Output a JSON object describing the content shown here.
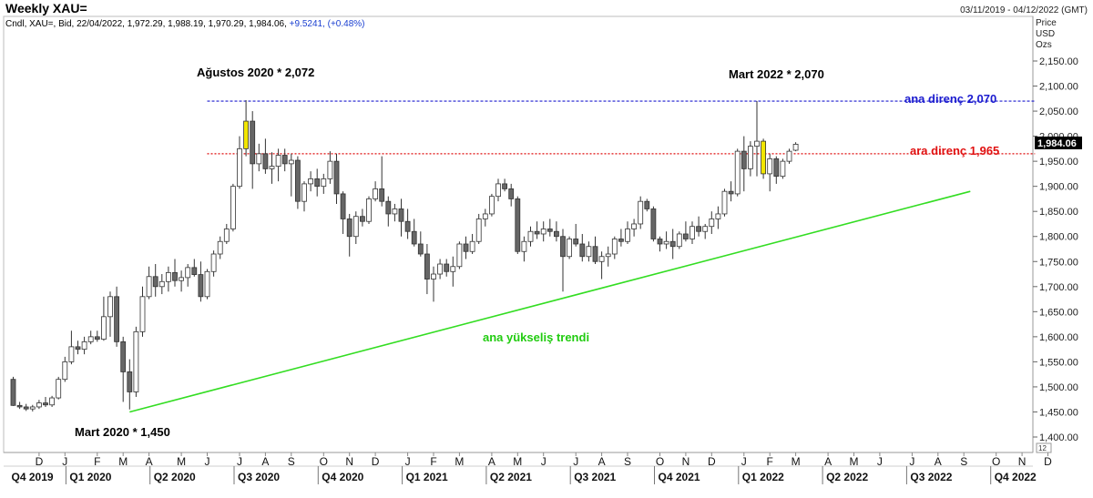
{
  "header": {
    "title": "Weekly XAU=",
    "date_range": "03/11/2019 - 04/12/2022 (GMT)",
    "info_line": "Cndl, XAU=, Bid, 22/04/2022, 1,972.29, 1,988.19, 1,970.29, 1,984.06,",
    "change": "+9.5241, (+0.48%)"
  },
  "axis_meta": {
    "price": "Price",
    "currency": "USD",
    "unit": "Ozs",
    "corner_value": "12"
  },
  "colors": {
    "bull": "#ffffff",
    "bear": "#666666",
    "highlight": "#f2e600",
    "trend": "#33dd22",
    "main_resistance": "#1c1ccf",
    "mid_resistance": "#e01010",
    "price_box": "#000000"
  },
  "chart_data": {
    "type": "candlestick",
    "title": "Weekly XAU=",
    "y_axis": {
      "min": 1400,
      "max": 2150,
      "ticks": [
        "1,400.00",
        "1,450.00",
        "1,500.00",
        "1,550.00",
        "1,600.00",
        "1,650.00",
        "1,700.00",
        "1,750.00",
        "1,800.00",
        "1,850.00",
        "1,900.00",
        "1,950.00",
        "2,000.00",
        "2,050.00",
        "2,100.00",
        "2,150.00"
      ]
    },
    "last_price_label": "1,984.06",
    "last_price": 1984.06,
    "month_labels": [
      {
        "label": "D",
        "week": 4
      },
      {
        "label": "J",
        "week": 8
      },
      {
        "label": "F",
        "week": 13
      },
      {
        "label": "M",
        "week": 17
      },
      {
        "label": "A",
        "week": 21
      },
      {
        "label": "M",
        "week": 26
      },
      {
        "label": "J",
        "week": 30
      },
      {
        "label": "J",
        "week": 35
      },
      {
        "label": "A",
        "week": 39
      },
      {
        "label": "S",
        "week": 43
      },
      {
        "label": "O",
        "week": 48
      },
      {
        "label": "N",
        "week": 52
      },
      {
        "label": "D",
        "week": 56
      },
      {
        "label": "J",
        "week": 61
      },
      {
        "label": "F",
        "week": 65
      },
      {
        "label": "M",
        "week": 69
      },
      {
        "label": "A",
        "week": 74
      },
      {
        "label": "M",
        "week": 78
      },
      {
        "label": "J",
        "week": 82
      },
      {
        "label": "J",
        "week": 87
      },
      {
        "label": "A",
        "week": 91
      },
      {
        "label": "S",
        "week": 95
      },
      {
        "label": "O",
        "week": 100
      },
      {
        "label": "N",
        "week": 104
      },
      {
        "label": "D",
        "week": 108
      },
      {
        "label": "J",
        "week": 113
      },
      {
        "label": "F",
        "week": 117
      },
      {
        "label": "M",
        "week": 121
      },
      {
        "label": "A",
        "week": 126
      },
      {
        "label": "M",
        "week": 130
      },
      {
        "label": "J",
        "week": 134
      },
      {
        "label": "J",
        "week": 139
      },
      {
        "label": "A",
        "week": 143
      },
      {
        "label": "S",
        "week": 147
      },
      {
        "label": "O",
        "week": 152
      },
      {
        "label": "N",
        "week": 156
      },
      {
        "label": "D",
        "week": 160
      }
    ],
    "quarter_labels": [
      {
        "label": "Q4 2019",
        "week": 0
      },
      {
        "label": "Q1 2020",
        "week": 9
      },
      {
        "label": "Q2 2020",
        "week": 22
      },
      {
        "label": "Q3 2020",
        "week": 35
      },
      {
        "label": "Q4 2020",
        "week": 48
      },
      {
        "label": "Q1 2021",
        "week": 61
      },
      {
        "label": "Q2 2021",
        "week": 74
      },
      {
        "label": "Q3 2021",
        "week": 87
      },
      {
        "label": "Q4 2021",
        "week": 100
      },
      {
        "label": "Q1 2022",
        "week": 113
      },
      {
        "label": "Q2 2022",
        "week": 126
      },
      {
        "label": "Q3 2022",
        "week": 139
      },
      {
        "label": "Q4 2022",
        "week": 152
      }
    ],
    "candles": [
      [
        1515,
        1520,
        1462,
        1463
      ],
      [
        1463,
        1470,
        1456,
        1460
      ],
      [
        1460,
        1466,
        1452,
        1456
      ],
      [
        1456,
        1464,
        1451,
        1460
      ],
      [
        1460,
        1474,
        1456,
        1468
      ],
      [
        1468,
        1480,
        1460,
        1464
      ],
      [
        1464,
        1482,
        1460,
        1478
      ],
      [
        1478,
        1520,
        1475,
        1515
      ],
      [
        1515,
        1560,
        1510,
        1550
      ],
      [
        1550,
        1612,
        1545,
        1580
      ],
      [
        1580,
        1592,
        1565,
        1575
      ],
      [
        1575,
        1600,
        1565,
        1590
      ],
      [
        1590,
        1612,
        1585,
        1600
      ],
      [
        1600,
        1612,
        1590,
        1595
      ],
      [
        1595,
        1680,
        1592,
        1640
      ],
      [
        1640,
        1690,
        1600,
        1680
      ],
      [
        1680,
        1700,
        1580,
        1590
      ],
      [
        1590,
        1600,
        1470,
        1530
      ],
      [
        1530,
        1555,
        1455,
        1490
      ],
      [
        1490,
        1620,
        1480,
        1610
      ],
      [
        1610,
        1700,
        1600,
        1680
      ],
      [
        1680,
        1740,
        1675,
        1720
      ],
      [
        1720,
        1745,
        1680,
        1700
      ],
      [
        1700,
        1725,
        1685,
        1710
      ],
      [
        1710,
        1740,
        1690,
        1728
      ],
      [
        1728,
        1755,
        1700,
        1712
      ],
      [
        1712,
        1732,
        1690,
        1718
      ],
      [
        1718,
        1745,
        1700,
        1738
      ],
      [
        1738,
        1755,
        1720,
        1724
      ],
      [
        1724,
        1750,
        1670,
        1680
      ],
      [
        1680,
        1735,
        1675,
        1730
      ],
      [
        1730,
        1772,
        1720,
        1765
      ],
      [
        1765,
        1800,
        1755,
        1790
      ],
      [
        1790,
        1825,
        1785,
        1815
      ],
      [
        1815,
        1905,
        1810,
        1900
      ],
      [
        1900,
        2000,
        1895,
        1975
      ],
      [
        1975,
        2072,
        1960,
        2030
      ],
      [
        2030,
        2050,
        1895,
        1945
      ],
      [
        1945,
        1985,
        1930,
        1965
      ],
      [
        1965,
        1995,
        1925,
        1935
      ],
      [
        1935,
        1968,
        1905,
        1940
      ],
      [
        1940,
        1975,
        1910,
        1962
      ],
      [
        1962,
        1975,
        1930,
        1945
      ],
      [
        1945,
        1965,
        1880,
        1952
      ],
      [
        1952,
        1960,
        1855,
        1870
      ],
      [
        1870,
        1910,
        1850,
        1905
      ],
      [
        1905,
        1930,
        1890,
        1915
      ],
      [
        1915,
        1935,
        1880,
        1900
      ],
      [
        1900,
        1925,
        1885,
        1915
      ],
      [
        1915,
        1970,
        1905,
        1950
      ],
      [
        1950,
        1965,
        1865,
        1885
      ],
      [
        1885,
        1890,
        1805,
        1835
      ],
      [
        1835,
        1845,
        1760,
        1800
      ],
      [
        1800,
        1850,
        1785,
        1840
      ],
      [
        1840,
        1855,
        1820,
        1830
      ],
      [
        1830,
        1880,
        1825,
        1875
      ],
      [
        1875,
        1910,
        1870,
        1895
      ],
      [
        1895,
        1960,
        1860,
        1870
      ],
      [
        1870,
        1880,
        1820,
        1845
      ],
      [
        1845,
        1865,
        1830,
        1855
      ],
      [
        1855,
        1875,
        1800,
        1830
      ],
      [
        1830,
        1855,
        1795,
        1810
      ],
      [
        1810,
        1835,
        1780,
        1785
      ],
      [
        1785,
        1810,
        1760,
        1765
      ],
      [
        1765,
        1785,
        1685,
        1715
      ],
      [
        1715,
        1740,
        1670,
        1725
      ],
      [
        1725,
        1755,
        1715,
        1745
      ],
      [
        1745,
        1755,
        1720,
        1730
      ],
      [
        1730,
        1760,
        1700,
        1740
      ],
      [
        1740,
        1790,
        1735,
        1785
      ],
      [
        1785,
        1800,
        1755,
        1770
      ],
      [
        1770,
        1805,
        1765,
        1790
      ],
      [
        1790,
        1845,
        1785,
        1835
      ],
      [
        1835,
        1855,
        1820,
        1845
      ],
      [
        1845,
        1885,
        1840,
        1880
      ],
      [
        1880,
        1915,
        1870,
        1905
      ],
      [
        1905,
        1915,
        1890,
        1895
      ],
      [
        1895,
        1905,
        1860,
        1875
      ],
      [
        1875,
        1880,
        1765,
        1770
      ],
      [
        1770,
        1800,
        1750,
        1790
      ],
      [
        1790,
        1820,
        1780,
        1810
      ],
      [
        1810,
        1830,
        1795,
        1805
      ],
      [
        1805,
        1830,
        1790,
        1815
      ],
      [
        1815,
        1835,
        1800,
        1810
      ],
      [
        1810,
        1830,
        1790,
        1800
      ],
      [
        1800,
        1815,
        1690,
        1760
      ],
      [
        1760,
        1800,
        1755,
        1795
      ],
      [
        1795,
        1825,
        1780,
        1785
      ],
      [
        1785,
        1805,
        1750,
        1760
      ],
      [
        1760,
        1790,
        1750,
        1780
      ],
      [
        1780,
        1800,
        1745,
        1750
      ],
      [
        1750,
        1770,
        1715,
        1760
      ],
      [
        1760,
        1780,
        1740,
        1765
      ],
      [
        1765,
        1800,
        1755,
        1795
      ],
      [
        1795,
        1815,
        1780,
        1790
      ],
      [
        1790,
        1830,
        1785,
        1815
      ],
      [
        1815,
        1835,
        1800,
        1825
      ],
      [
        1825,
        1880,
        1815,
        1870
      ],
      [
        1870,
        1875,
        1850,
        1855
      ],
      [
        1855,
        1860,
        1790,
        1795
      ],
      [
        1795,
        1800,
        1770,
        1785
      ],
      [
        1785,
        1810,
        1775,
        1790
      ],
      [
        1790,
        1815,
        1755,
        1780
      ],
      [
        1780,
        1810,
        1775,
        1805
      ],
      [
        1805,
        1830,
        1790,
        1795
      ],
      [
        1795,
        1830,
        1785,
        1820
      ],
      [
        1820,
        1840,
        1800,
        1810
      ],
      [
        1810,
        1825,
        1795,
        1820
      ],
      [
        1820,
        1850,
        1805,
        1835
      ],
      [
        1835,
        1860,
        1815,
        1845
      ],
      [
        1845,
        1895,
        1840,
        1890
      ],
      [
        1890,
        1910,
        1870,
        1885
      ],
      [
        1885,
        1975,
        1880,
        1970
      ],
      [
        1970,
        2000,
        1890,
        1935
      ],
      [
        1935,
        1990,
        1920,
        1980
      ],
      [
        1980,
        2070,
        1920,
        1990
      ],
      [
        1990,
        1995,
        1915,
        1925
      ],
      [
        1925,
        1965,
        1890,
        1955
      ],
      [
        1955,
        1960,
        1905,
        1920
      ],
      [
        1920,
        1955,
        1915,
        1950
      ],
      [
        1950,
        1975,
        1945,
        1970
      ],
      [
        1972,
        1988,
        1970,
        1984
      ]
    ],
    "highlight_candles": [
      36,
      116,
      122,
      123
    ],
    "lines": {
      "main_resistance": {
        "value": 2070,
        "from_week": 30,
        "to_week": 158
      },
      "mid_resistance": {
        "value": 1965,
        "from_week": 30,
        "to_week": 158
      },
      "trend": {
        "from": {
          "week": 18,
          "value": 1450
        },
        "to": {
          "week": 148,
          "value": 1890
        }
      }
    },
    "annotations": {
      "aug_2020": "Ağustos 2020 * 2,072",
      "mar_2022": "Mart 2022 * 2,070",
      "mar_2020": "Mart 2020 * 1,450",
      "main_resistance_label": "ana direnç 2,070",
      "mid_resistance_label": "ara direnç 1,965",
      "trend_label": "ana yükseliş trendi"
    }
  }
}
